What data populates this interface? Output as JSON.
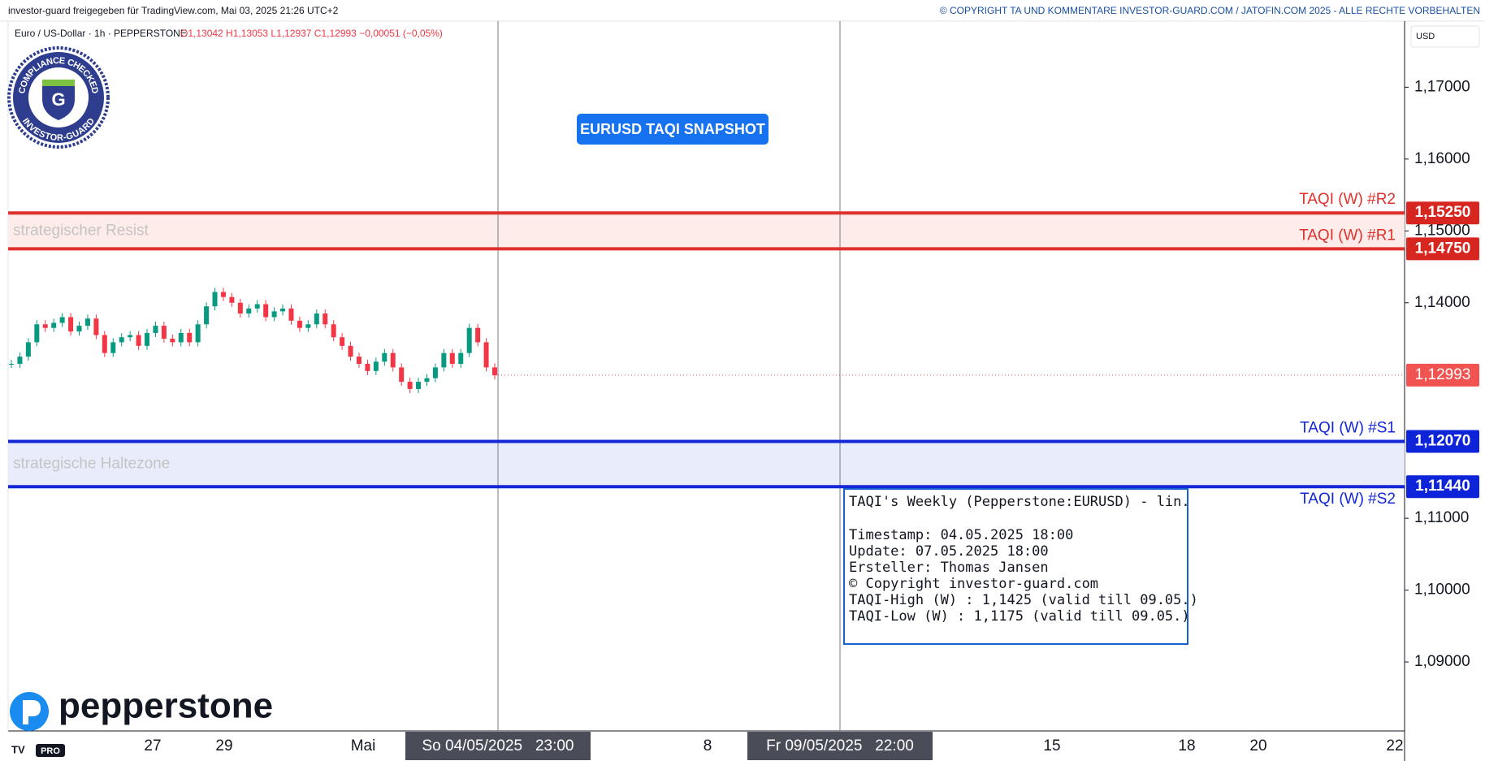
{
  "header": {
    "left": "investor-guard freigegeben für TradingView.com, Mai 03, 2025 21:26 UTC+2",
    "right": "© COPYRIGHT TA UND KOMMENTARE INVESTOR-GUARD.COM / JATOFIN.COM 2025 - ALLE RECHTE VORBEHALTEN"
  },
  "badge": {
    "top": "COMPLIANCE CHECKED",
    "bottom": "INVESTOR-GUARD",
    "mark": "G"
  },
  "logo": {
    "name": "pepperstone",
    "plan": "PRO"
  },
  "info_box": {
    "heading": "TAQI's Weekly (Pepperstone:EURUSD) - lin.",
    "lines": [
      "Timestamp: 04.05.2025 18:00",
      "Update: 07.05.2025 18:00",
      "Ersteller: Thomas Jansen",
      "© Copyright investor-guard.com",
      "TAQI-High (W) : 1,1425 (valid till 09.05.)",
      "TAQI-Low (W) : 1,1175 (valid till 09.05.)"
    ]
  },
  "chart_data": {
    "type": "candlestick",
    "title": "EURUSD TAQI SNAPSHOT",
    "symbol": "Euro / US-Dollar · 1h · PEPPERSTONE",
    "ohlc": "O1,13042 H1,13053 L1,12937 C1,12993 −0,00051 (−0,05%)",
    "currency": "USD",
    "values": [
      1.1315,
      1.1325,
      1.1345,
      1.137,
      1.1365,
      1.1372,
      1.138,
      1.136,
      1.1368,
      1.1378,
      1.1355,
      1.133,
      1.1345,
      1.1352,
      1.1355,
      1.134,
      1.1358,
      1.1368,
      1.135,
      1.1345,
      1.1358,
      1.1345,
      1.137,
      1.1395,
      1.1415,
      1.1408,
      1.14,
      1.1385,
      1.1392,
      1.1398,
      1.138,
      1.1388,
      1.1392,
      1.1375,
      1.1365,
      1.137,
      1.1385,
      1.137,
      1.1352,
      1.134,
      1.1325,
      1.1315,
      1.1305,
      1.1318,
      1.133,
      1.131,
      1.129,
      1.128,
      1.129,
      1.1295,
      1.131,
      1.133,
      1.1315,
      1.133,
      1.1365,
      1.1345,
      1.131,
      1.1299
    ],
    "up_color": "#089981",
    "down_color": "#f23645",
    "ylim": [
      1.0804,
      1.1792
    ],
    "yticks": [
      {
        "value": 1.09,
        "label": "1,09000"
      },
      {
        "value": 1.1,
        "label": "1,10000"
      },
      {
        "value": 1.11,
        "label": "1,11000"
      },
      {
        "value": 1.14,
        "label": "1,14000"
      },
      {
        "value": 1.15,
        "label": "1,15000"
      },
      {
        "value": 1.16,
        "label": "1,16000"
      },
      {
        "value": 1.17,
        "label": "1,17000"
      }
    ],
    "x_labels": [
      {
        "label": "27"
      },
      {
        "label": "29"
      },
      {
        "label": "Mai"
      },
      {
        "label": "So 04/05/2025   23:00",
        "highlight": true
      },
      {
        "label": "8"
      },
      {
        "label": "Fr 09/05/2025   22:00",
        "highlight": true
      },
      {
        "label": "15"
      },
      {
        "label": "18"
      },
      {
        "label": "20"
      },
      {
        "label": "22"
      }
    ],
    "levels": [
      {
        "name": "TAQI (W) #R2",
        "value": 1.1525,
        "value_label": "1,15250",
        "color": "#e0302b"
      },
      {
        "name": "TAQI (W) #R1",
        "value": 1.1475,
        "value_label": "1,14750",
        "color": "#e0302b"
      },
      {
        "name": "TAQI (W) #S1",
        "value": 1.1207,
        "value_label": "1,12070",
        "color": "#1427d8"
      },
      {
        "name": "TAQI (W) #S2",
        "value": 1.1144,
        "value_label": "1,11440",
        "color": "#1427d8"
      }
    ],
    "zones": [
      {
        "label": "strategischer Resist",
        "color": "#fdecea"
      },
      {
        "label": "strategische Haltezone",
        "color": "#e9edfb"
      }
    ],
    "last": {
      "value": 1.12993,
      "label": "1,12993",
      "color": "#f05350"
    }
  }
}
